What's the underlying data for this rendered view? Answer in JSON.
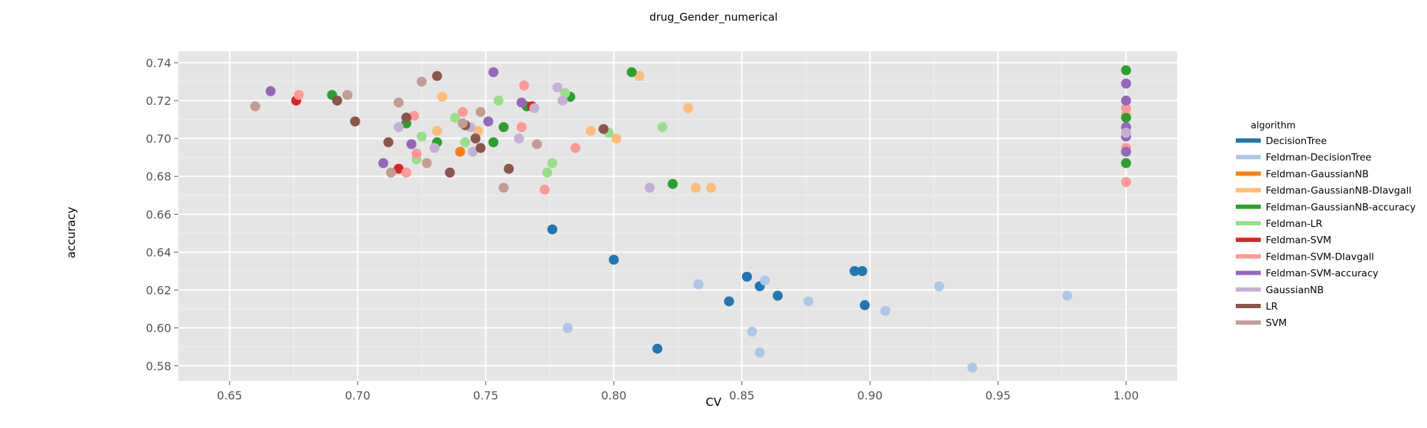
{
  "chart_data": {
    "type": "scatter",
    "title": "drug_Gender_numerical",
    "xlabel": "CV",
    "ylabel": "accuracy",
    "xlim": [
      0.63,
      1.02
    ],
    "ylim": [
      0.572,
      0.746
    ],
    "x_ticks": [
      "0.65",
      "0.70",
      "0.75",
      "0.80",
      "0.85",
      "0.90",
      "0.95",
      "1.00"
    ],
    "y_ticks": [
      "0.58",
      "0.60",
      "0.62",
      "0.64",
      "0.66",
      "0.68",
      "0.70",
      "0.72",
      "0.74"
    ],
    "grid": true,
    "legend_title": "algorithm",
    "legend_position": "right",
    "series": [
      {
        "name": "DecisionTree",
        "color": "#1f77b4",
        "points": [
          [
            0.776,
            0.652
          ],
          [
            0.8,
            0.636
          ],
          [
            0.817,
            0.589
          ],
          [
            0.845,
            0.614
          ],
          [
            0.852,
            0.627
          ],
          [
            0.857,
            0.622
          ],
          [
            0.864,
            0.617
          ],
          [
            0.894,
            0.63
          ],
          [
            0.897,
            0.63
          ],
          [
            0.898,
            0.612
          ]
        ]
      },
      {
        "name": "Feldman-DecisionTree",
        "color": "#aec7e8",
        "points": [
          [
            0.782,
            0.6
          ],
          [
            0.833,
            0.623
          ],
          [
            0.854,
            0.598
          ],
          [
            0.857,
            0.587
          ],
          [
            0.859,
            0.625
          ],
          [
            0.876,
            0.614
          ],
          [
            0.906,
            0.609
          ],
          [
            0.927,
            0.622
          ],
          [
            0.94,
            0.579
          ],
          [
            0.977,
            0.617
          ]
        ]
      },
      {
        "name": "Feldman-GaussianNB",
        "color": "#ff7f0e",
        "points": [
          [
            0.74,
            0.693
          ]
        ]
      },
      {
        "name": "Feldman-GaussianNB-DIavgall",
        "color": "#ffbb78",
        "points": [
          [
            0.731,
            0.704
          ],
          [
            0.733,
            0.722
          ],
          [
            0.747,
            0.704
          ],
          [
            0.791,
            0.704
          ],
          [
            0.801,
            0.7
          ],
          [
            0.81,
            0.733
          ],
          [
            0.829,
            0.716
          ],
          [
            0.832,
            0.674
          ],
          [
            0.838,
            0.674
          ],
          [
            1.0,
            0.713
          ]
        ]
      },
      {
        "name": "Feldman-GaussianNB-accuracy",
        "color": "#2ca02c",
        "points": [
          [
            0.69,
            0.723
          ],
          [
            0.719,
            0.708
          ],
          [
            0.731,
            0.698
          ],
          [
            0.753,
            0.698
          ],
          [
            0.757,
            0.706
          ],
          [
            0.766,
            0.717
          ],
          [
            0.783,
            0.722
          ],
          [
            0.807,
            0.735
          ],
          [
            0.823,
            0.676
          ],
          [
            1.0,
            0.736
          ],
          [
            1.0,
            0.711
          ],
          [
            1.0,
            0.687
          ]
        ]
      },
      {
        "name": "Feldman-LR",
        "color": "#98df8a",
        "points": [
          [
            0.723,
            0.689
          ],
          [
            0.725,
            0.701
          ],
          [
            0.738,
            0.711
          ],
          [
            0.742,
            0.698
          ],
          [
            0.755,
            0.72
          ],
          [
            0.774,
            0.682
          ],
          [
            0.776,
            0.687
          ],
          [
            0.781,
            0.724
          ],
          [
            0.798,
            0.703
          ],
          [
            0.819,
            0.706
          ]
        ]
      },
      {
        "name": "Feldman-SVM",
        "color": "#d62728",
        "points": [
          [
            0.676,
            0.72
          ],
          [
            0.716,
            0.684
          ],
          [
            0.768,
            0.717
          ]
        ]
      },
      {
        "name": "Feldman-SVM-DIavgall",
        "color": "#ff9896",
        "points": [
          [
            0.677,
            0.723
          ],
          [
            0.719,
            0.682
          ],
          [
            0.722,
            0.712
          ],
          [
            0.723,
            0.692
          ],
          [
            0.741,
            0.714
          ],
          [
            0.764,
            0.706
          ],
          [
            0.765,
            0.728
          ],
          [
            0.773,
            0.673
          ],
          [
            0.785,
            0.695
          ],
          [
            1.0,
            0.716
          ],
          [
            1.0,
            0.695
          ],
          [
            1.0,
            0.677
          ]
        ]
      },
      {
        "name": "Feldman-SVM-accuracy",
        "color": "#9467bd",
        "points": [
          [
            0.666,
            0.725
          ],
          [
            0.71,
            0.687
          ],
          [
            0.721,
            0.697
          ],
          [
            0.751,
            0.709
          ],
          [
            0.753,
            0.735
          ],
          [
            0.764,
            0.719
          ],
          [
            1.0,
            0.729
          ],
          [
            1.0,
            0.72
          ],
          [
            1.0,
            0.706
          ],
          [
            1.0,
            0.701
          ],
          [
            1.0,
            0.693
          ]
        ]
      },
      {
        "name": "GaussianNB",
        "color": "#c5b0d5",
        "points": [
          [
            0.716,
            0.706
          ],
          [
            0.73,
            0.695
          ],
          [
            0.744,
            0.706
          ],
          [
            0.745,
            0.693
          ],
          [
            0.763,
            0.7
          ],
          [
            0.769,
            0.716
          ],
          [
            0.778,
            0.727
          ],
          [
            0.78,
            0.72
          ],
          [
            0.814,
            0.674
          ],
          [
            1.0,
            0.703
          ]
        ]
      },
      {
        "name": "LR",
        "color": "#8c564b",
        "points": [
          [
            0.692,
            0.72
          ],
          [
            0.699,
            0.709
          ],
          [
            0.712,
            0.698
          ],
          [
            0.719,
            0.711
          ],
          [
            0.731,
            0.733
          ],
          [
            0.736,
            0.682
          ],
          [
            0.742,
            0.707
          ],
          [
            0.746,
            0.7
          ],
          [
            0.748,
            0.695
          ],
          [
            0.759,
            0.684
          ],
          [
            0.796,
            0.705
          ]
        ]
      },
      {
        "name": "SVM",
        "color": "#c49c94",
        "points": [
          [
            0.66,
            0.717
          ],
          [
            0.696,
            0.723
          ],
          [
            0.713,
            0.682
          ],
          [
            0.716,
            0.719
          ],
          [
            0.725,
            0.73
          ],
          [
            0.727,
            0.687
          ],
          [
            0.741,
            0.708
          ],
          [
            0.748,
            0.714
          ],
          [
            0.757,
            0.674
          ],
          [
            0.77,
            0.697
          ]
        ]
      }
    ]
  }
}
